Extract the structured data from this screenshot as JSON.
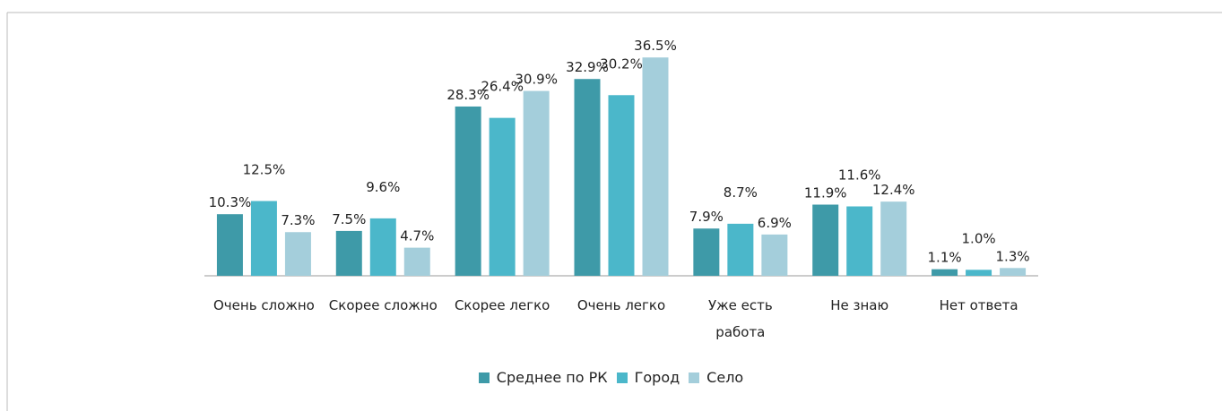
{
  "chart_data": {
    "type": "bar",
    "categories": [
      "Очень сложно",
      "Скорее сложно",
      "Скорее легко",
      "Очень легко",
      "Уже есть работа",
      "Не знаю",
      "Нет ответа"
    ],
    "series": [
      {
        "name": "Среднее по РК",
        "color": "#3e9aa8",
        "values": [
          10.3,
          7.5,
          28.3,
          32.9,
          7.9,
          11.9,
          1.1
        ],
        "value_labels": [
          "10.3%",
          "7.5%",
          "28.3%",
          "32.9%",
          "7.9%",
          "11.9%",
          "1.1%"
        ]
      },
      {
        "name": "Город",
        "color": "#4bb7ca",
        "values": [
          12.5,
          9.6,
          26.4,
          30.2,
          8.7,
          11.6,
          1.0
        ],
        "value_labels": [
          "12.5%",
          "9.6%",
          "26.4%",
          "30.2%",
          "8.7%",
          "11.6%",
          "1.0%"
        ]
      },
      {
        "name": "Село",
        "color": "#a4cedb",
        "values": [
          7.3,
          4.7,
          30.9,
          36.5,
          6.9,
          12.4,
          1.3
        ],
        "value_labels": [
          "7.3%",
          "4.7%",
          "30.9%",
          "36.5%",
          "6.9%",
          "12.4%",
          "1.3%"
        ]
      }
    ],
    "legend": "bottom"
  }
}
